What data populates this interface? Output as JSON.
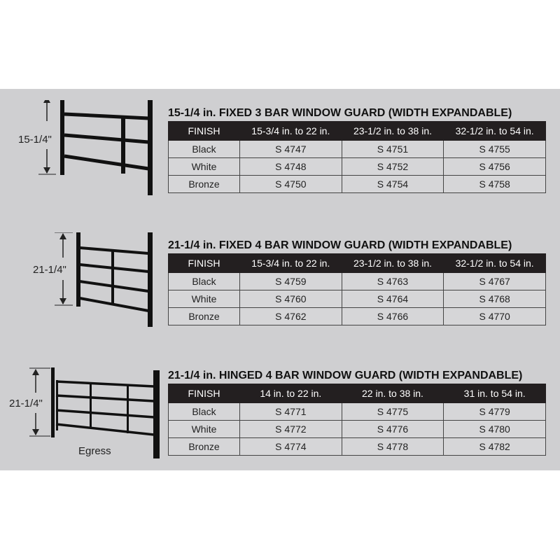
{
  "guards": [
    {
      "title": "15-1/4 in. FIXED 3 BAR WINDOW GUARD (WIDTH EXPANDABLE)",
      "height_label": "15-1/4\"",
      "type": "fixed",
      "bars": 3,
      "headers": [
        "FINISH",
        "15-3/4 in. to 22 in.",
        "23-1/2 in. to 38 in.",
        "32-1/2 in. to 54 in."
      ],
      "rows": [
        [
          "Black",
          "S 4747",
          "S 4751",
          "S 4755"
        ],
        [
          "White",
          "S 4748",
          "S 4752",
          "S 4756"
        ],
        [
          "Bronze",
          "S 4750",
          "S 4754",
          "S 4758"
        ]
      ]
    },
    {
      "title": "21-1/4 in. FIXED 4 BAR WINDOW GUARD (WIDTH EXPANDABLE)",
      "height_label": "21-1/4\"",
      "type": "fixed",
      "bars": 4,
      "headers": [
        "FINISH",
        "15-3/4 in. to 22 in.",
        "23-1/2 in. to 38 in.",
        "32-1/2 in. to 54 in."
      ],
      "rows": [
        [
          "Black",
          "S 4759",
          "S 4763",
          "S 4767"
        ],
        [
          "White",
          "S 4760",
          "S 4764",
          "S 4768"
        ],
        [
          "Bronze",
          "S 4762",
          "S 4766",
          "S 4770"
        ]
      ]
    },
    {
      "title": "21-1/4 in. HINGED 4 BAR WINDOW GUARD (WIDTH EXPANDABLE)",
      "height_label": "21-1/4\"",
      "type": "hinged",
      "bars": 4,
      "caption": "Egress",
      "headers": [
        "FINISH",
        "14 in. to 22 in.",
        "22 in. to 38 in.",
        "31 in. to 54 in."
      ],
      "rows": [
        [
          "Black",
          "S 4771",
          "S 4775",
          "S 4779"
        ],
        [
          "White",
          "S 4772",
          "S 4776",
          "S 4780"
        ],
        [
          "Bronze",
          "S 4774",
          "S 4778",
          "S 4782"
        ]
      ]
    }
  ]
}
